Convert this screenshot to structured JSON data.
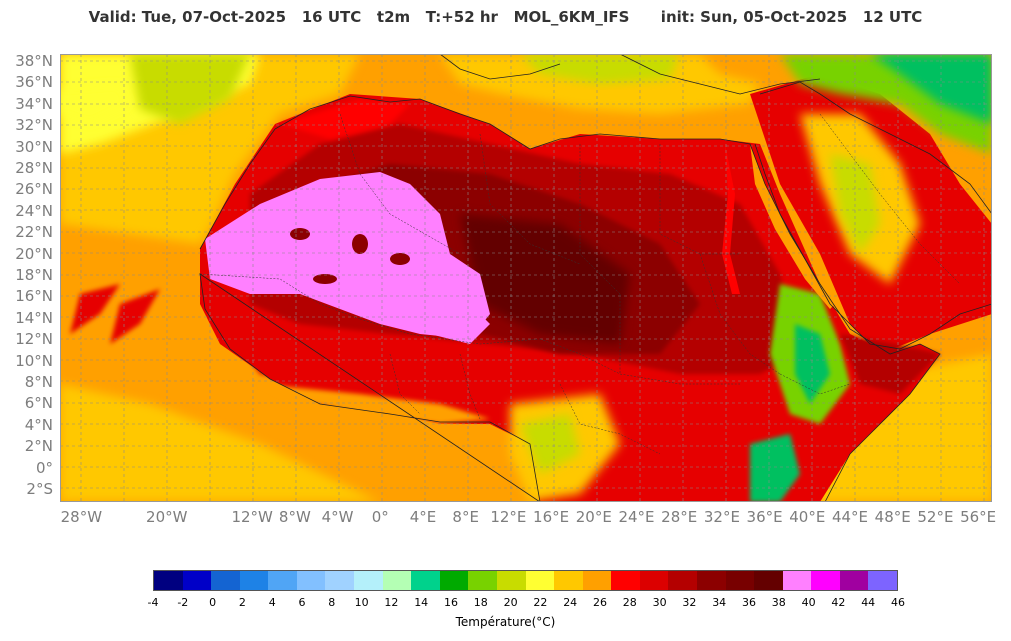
{
  "header": {
    "title": "Valid: Tue, 07-Oct-2025   16 UTC   t2m   T:+52 hr   MOL_6KM_IFS      init: Sun, 05-Oct-2025   12 UTC"
  },
  "map": {
    "lat_labels": [
      "38°N",
      "36°N",
      "34°N",
      "32°N",
      "30°N",
      "28°N",
      "26°N",
      "24°N",
      "22°N",
      "20°N",
      "18°N",
      "16°N",
      "14°N",
      "12°N",
      "10°N",
      "8°N",
      "6°N",
      "4°N",
      "2°N",
      "0°",
      "2°S"
    ],
    "lon_labels": [
      "28°W",
      "20°W",
      "12°W",
      "8°W",
      "4°W",
      "0°",
      "4°E",
      "8°E",
      "12°E",
      "16°E",
      "20°E",
      "24°E",
      "28°E",
      "32°E",
      "36°E",
      "40°E",
      "44°E",
      "48°E",
      "52°E",
      "56°E"
    ],
    "colors": {
      "ocean_warm": "#ffa000",
      "ocean_mild": "#ffc800",
      "land_hot": "#e60000",
      "land_very_hot": "#b40000",
      "land_extreme": "#8c0000",
      "desert_peak": "#ff80ff",
      "highland_cool": "#c8dc00",
      "vegetation": "#00c060"
    }
  },
  "colorbar": {
    "label": "Température(°C)",
    "ticks": [
      "-4",
      "-2",
      "0",
      "2",
      "4",
      "6",
      "8",
      "10",
      "12",
      "14",
      "16",
      "18",
      "20",
      "22",
      "24",
      "26",
      "28",
      "30",
      "32",
      "34",
      "36",
      "38",
      "40",
      "42",
      "44",
      "46"
    ],
    "colors": [
      "#000080",
      "#0000c8",
      "#1464d2",
      "#1e82e6",
      "#50a5f5",
      "#82c0ff",
      "#a0d2ff",
      "#b4f0fa",
      "#b4ffb4",
      "#00d28c",
      "#00aa00",
      "#78d200",
      "#c8dc00",
      "#ffff32",
      "#ffc800",
      "#ffa000",
      "#ff0000",
      "#dc0000",
      "#b40000",
      "#8c0000",
      "#780000",
      "#640000",
      "#ff80ff",
      "#ff00ff",
      "#a000a0",
      "#7d64ff"
    ]
  }
}
